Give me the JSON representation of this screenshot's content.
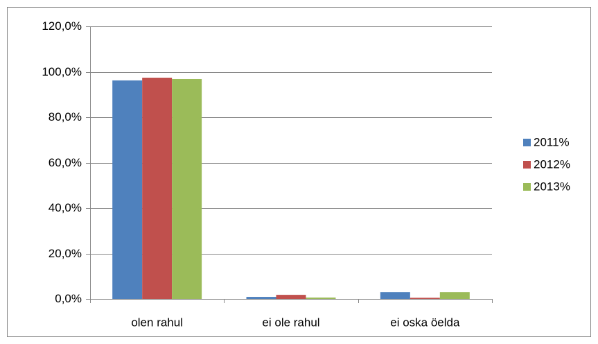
{
  "chart_data": {
    "type": "bar",
    "categories": [
      "olen rahul",
      "ei ole rahul",
      "ei oska öelda"
    ],
    "series": [
      {
        "name": "2011%",
        "color": "#4f81bd",
        "values": [
          96.2,
          0.9,
          3.0
        ]
      },
      {
        "name": "2012%",
        "color": "#c0504d",
        "values": [
          97.4,
          1.8,
          0.5
        ]
      },
      {
        "name": "2013%",
        "color": "#9bbb59",
        "values": [
          96.8,
          0.6,
          3.0
        ]
      }
    ],
    "ylim": [
      0,
      120
    ],
    "yticks": [
      {
        "value": 0,
        "label": "0,0%"
      },
      {
        "value": 20,
        "label": "20,0%"
      },
      {
        "value": 40,
        "label": "40,0%"
      },
      {
        "value": 60,
        "label": "60,0%"
      },
      {
        "value": 80,
        "label": "80,0%"
      },
      {
        "value": 100,
        "label": "100,0%"
      },
      {
        "value": 120,
        "label": "120,0%"
      }
    ],
    "grid": true,
    "legend": "right"
  }
}
